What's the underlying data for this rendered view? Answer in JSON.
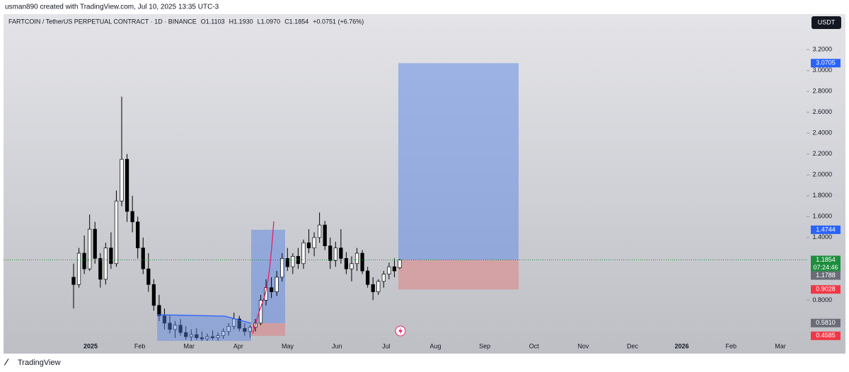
{
  "header": "usman890 created with TradingView.com, Jul 10, 2025 13:35 UTC-3",
  "footer": "TradingView",
  "chart_data": {
    "type": "candlestick",
    "title": "FARTCOIN / TetherUS PERPETUAL CONTRACT · 1D · BINANCE",
    "legend_values": [
      "O1.1103",
      "H1.1930",
      "L1.0970",
      "C1.1854",
      "+0.0751 (+6.76%)"
    ],
    "currency": "USDT",
    "open": [
      1.02,
      0.95,
      1.25,
      1.1,
      1.48,
      1.2,
      1.0,
      1.3,
      1.15,
      1.75,
      2.15,
      1.65,
      1.55,
      1.3,
      1.1,
      0.95,
      0.75,
      0.65,
      0.58,
      0.52,
      0.56,
      0.49,
      0.45,
      0.47,
      0.44,
      0.43,
      0.45,
      0.44,
      0.46,
      0.5,
      0.55,
      0.62,
      0.53,
      0.5,
      0.54,
      0.58,
      0.8,
      0.92,
      0.88,
      1.02,
      1.2,
      1.12,
      1.22,
      1.15,
      1.35,
      1.3,
      1.4,
      1.52,
      1.32,
      1.18,
      1.3,
      1.2,
      1.1,
      1.15,
      1.25,
      1.08,
      0.95,
      0.88,
      0.98,
      1.05,
      1.12,
      1.1103
    ],
    "high": [
      1.15,
      1.3,
      1.42,
      1.62,
      1.55,
      1.25,
      1.35,
      1.45,
      1.85,
      2.75,
      2.2,
      1.8,
      1.6,
      1.4,
      1.25,
      1.0,
      0.85,
      0.72,
      0.66,
      0.6,
      0.62,
      0.55,
      0.52,
      0.53,
      0.5,
      0.48,
      0.51,
      0.49,
      0.53,
      0.58,
      0.68,
      0.65,
      0.58,
      0.56,
      0.62,
      0.85,
      1.0,
      1.02,
      1.08,
      1.25,
      1.3,
      1.25,
      1.3,
      1.38,
      1.48,
      1.45,
      1.64,
      1.56,
      1.4,
      1.36,
      1.48,
      1.26,
      1.22,
      1.3,
      1.28,
      1.12,
      1.02,
      1.0,
      1.08,
      1.16,
      1.2,
      1.193
    ],
    "low": [
      0.72,
      0.92,
      1.05,
      1.08,
      1.15,
      0.92,
      0.95,
      1.1,
      1.12,
      1.7,
      1.55,
      1.45,
      1.2,
      1.05,
      0.88,
      0.7,
      0.6,
      0.52,
      0.48,
      0.44,
      0.46,
      0.42,
      0.41,
      0.42,
      0.41,
      0.41,
      0.42,
      0.41,
      0.43,
      0.46,
      0.52,
      0.5,
      0.46,
      0.44,
      0.5,
      0.56,
      0.75,
      0.82,
      0.84,
      0.98,
      1.08,
      1.05,
      1.1,
      1.1,
      1.25,
      1.22,
      1.35,
      1.28,
      1.1,
      1.12,
      1.15,
      1.05,
      0.98,
      1.08,
      1.05,
      0.92,
      0.8,
      0.85,
      0.92,
      1.0,
      1.02,
      1.097
    ],
    "close": [
      0.95,
      1.25,
      1.1,
      1.48,
      1.2,
      1.0,
      1.3,
      1.15,
      1.75,
      2.15,
      1.65,
      1.55,
      1.3,
      1.1,
      0.95,
      0.75,
      0.65,
      0.58,
      0.52,
      0.56,
      0.49,
      0.45,
      0.47,
      0.44,
      0.43,
      0.45,
      0.44,
      0.46,
      0.5,
      0.55,
      0.62,
      0.53,
      0.5,
      0.54,
      0.58,
      0.8,
      0.92,
      0.88,
      1.02,
      1.2,
      1.12,
      1.22,
      1.15,
      1.35,
      1.3,
      1.4,
      1.52,
      1.32,
      1.18,
      1.3,
      1.2,
      1.1,
      1.15,
      1.25,
      1.08,
      0.95,
      0.88,
      0.98,
      1.05,
      1.12,
      1.08,
      1.1854
    ],
    "up_color": "#ffffff",
    "down_color": "#000000",
    "wick_color": "#000000",
    "ylim": [
      0.41,
      3.54
    ],
    "yticks": [
      {
        "value": 0.8,
        "label": "0.8000"
      },
      {
        "value": 1.4,
        "label": "1.4000"
      },
      {
        "value": 1.6,
        "label": "1.6000"
      },
      {
        "value": 1.8,
        "label": "1.8000"
      },
      {
        "value": 2.0,
        "label": "2.0000"
      },
      {
        "value": 2.2,
        "label": "2.2000"
      },
      {
        "value": 2.4,
        "label": "2.4000"
      },
      {
        "value": 2.6,
        "label": "2.6000"
      },
      {
        "value": 2.8,
        "label": "2.8000"
      },
      {
        "value": 3.0,
        "label": "3.0000"
      },
      {
        "value": 3.2,
        "label": "3.2000"
      }
    ],
    "time_axis_labels": [
      "2025",
      "Feb",
      "Mar",
      "Apr",
      "May",
      "Jun",
      "Jul",
      "Aug",
      "Sep",
      "Oct",
      "Nov",
      "Dec",
      "2026",
      "Feb",
      "Mar"
    ],
    "grid": false,
    "last_price": 1.1854,
    "last_price_color": "#1e8e3e",
    "countdown": "07:24:46",
    "positions": [
      {
        "target": 1.4744,
        "entry": 0.581,
        "stop": 0.4585
      },
      {
        "target": 3.0705,
        "entry": 1.1854,
        "stop": 0.9028
      }
    ],
    "price_labels": [
      {
        "value": 3.0705,
        "color": "#2962ff"
      },
      {
        "value": 1.4744,
        "color": "#2962ff"
      },
      {
        "value": 1.1788,
        "color": "#6a6d78"
      },
      {
        "value": 0.9028,
        "color": "#f23645"
      },
      {
        "value": 0.581,
        "label": "0.5810",
        "color": "#6a6d78"
      },
      {
        "value": 0.4585,
        "color": "#f23645"
      }
    ]
  }
}
